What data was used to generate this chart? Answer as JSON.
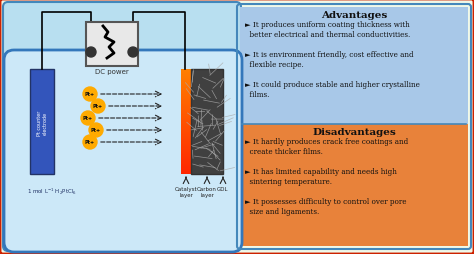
{
  "fig_width": 4.74,
  "fig_height": 2.55,
  "dpi": 100,
  "outer_border_color": "#cc2200",
  "left_panel_bg": "#b8dff0",
  "right_top_bg": "#a8c8e8",
  "right_bottom_bg": "#e8823a",
  "advantages_title": "Advantages",
  "disadvantages_title": "Disadvantages",
  "adv1": "► It produces uniform coating thickness with\n  better electrical and thermal conductivities.",
  "adv2": "► It is environment friendly, cost effective and\n  flexible recipe.",
  "adv3": "► It could produce stable and higher crystalline\n  films.",
  "dis1": "► It hardly produces crack free coatings and\n  create thicker films.",
  "dis2": "► It has limited capability and needs high\n  sintering temperature.",
  "dis3": "► It possesses difficulty to control over pore\n  size and ligaments.",
  "dc_power_label": "DC power",
  "electrolyte_label": "1 mol L$^{-1}$ H$_2$PtCl$_6$",
  "catalyst_label": "Catalyst\nlayer",
  "carbon_label": "Carbon\nlayer",
  "gdl_label": "GDL",
  "electrode_label": "Pt counter\nelectrode",
  "pt_label": "Pt+"
}
